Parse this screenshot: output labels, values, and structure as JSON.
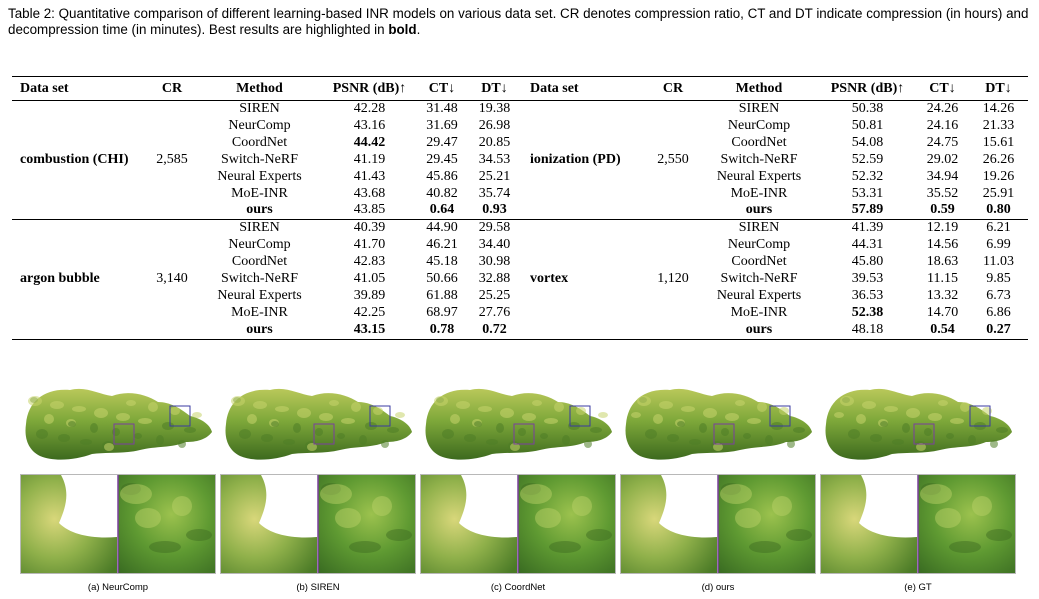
{
  "caption": {
    "prefix": "Table 2: Quantitative comparison of different learning-based INR models on various data set. CR denotes compression ratio, CT and DT indicate compression (in hours) and decompression time (in minutes). Best results are highlighted in ",
    "bold_word": "bold",
    "suffix": "."
  },
  "table": {
    "headers": [
      "Data set",
      "CR",
      "Method",
      "PSNR (dB)↑",
      "CT↓",
      "DT↓",
      "Data set",
      "CR",
      "Method",
      "PSNR (dB)↑",
      "CT↓",
      "DT↓"
    ],
    "groups": [
      {
        "left": {
          "dataset": "combustion (CHI)",
          "cr": "2,585"
        },
        "right": {
          "dataset": "ionization (PD)",
          "cr": "2,550"
        },
        "rows": [
          {
            "lm": "SIREN",
            "lp": "42.28",
            "lct": "31.48",
            "ldt": "19.38",
            "rm": "SIREN",
            "rp": "50.38",
            "rct": "24.26",
            "rdt": "14.26"
          },
          {
            "lm": "NeurComp",
            "lp": "43.16",
            "lct": "31.69",
            "ldt": "26.98",
            "rm": "NeurComp",
            "rp": "50.81",
            "rct": "24.16",
            "rdt": "21.33"
          },
          {
            "lm": "CoordNet",
            "lp": "44.42",
            "lct": "29.47",
            "ldt": "20.85",
            "rm": "CoordNet",
            "rp": "54.08",
            "rct": "24.75",
            "rdt": "15.61",
            "bold": [
              "lp"
            ]
          },
          {
            "lm": "Switch-NeRF",
            "lp": "41.19",
            "lct": "29.45",
            "ldt": "34.53",
            "rm": "Switch-NeRF",
            "rp": "52.59",
            "rct": "29.02",
            "rdt": "26.26"
          },
          {
            "lm": "Neural Experts",
            "lp": "41.43",
            "lct": "45.86",
            "ldt": "25.21",
            "rm": "Neural Experts",
            "rp": "52.32",
            "rct": "34.94",
            "rdt": "19.26"
          },
          {
            "lm": "MoE-INR",
            "lp": "43.68",
            "lct": "40.82",
            "ldt": "35.74",
            "rm": "MoE-INR",
            "rp": "53.31",
            "rct": "35.52",
            "rdt": "25.91"
          },
          {
            "lm": "ours",
            "lp": "43.85",
            "lct": "0.64",
            "ldt": "0.93",
            "rm": "ours",
            "rp": "57.89",
            "rct": "0.59",
            "rdt": "0.80",
            "bold": [
              "lm",
              "lct",
              "ldt",
              "rm",
              "rp",
              "rct",
              "rdt"
            ]
          }
        ]
      },
      {
        "left": {
          "dataset": "argon bubble",
          "cr": "3,140"
        },
        "right": {
          "dataset": "vortex",
          "cr": "1,120"
        },
        "rows": [
          {
            "lm": "SIREN",
            "lp": "40.39",
            "lct": "44.90",
            "ldt": "29.58",
            "rm": "SIREN",
            "rp": "41.39",
            "rct": "12.19",
            "rdt": "6.21"
          },
          {
            "lm": "NeurComp",
            "lp": "41.70",
            "lct": "46.21",
            "ldt": "34.40",
            "rm": "NeurComp",
            "rp": "44.31",
            "rct": "14.56",
            "rdt": "6.99"
          },
          {
            "lm": "CoordNet",
            "lp": "42.83",
            "lct": "45.18",
            "ldt": "30.98",
            "rm": "CoordNet",
            "rp": "45.80",
            "rct": "18.63",
            "rdt": "11.03"
          },
          {
            "lm": "Switch-NeRF",
            "lp": "41.05",
            "lct": "50.66",
            "ldt": "32.88",
            "rm": "Switch-NeRF",
            "rp": "39.53",
            "rct": "11.15",
            "rdt": "9.85"
          },
          {
            "lm": "Neural Experts",
            "lp": "39.89",
            "lct": "61.88",
            "ldt": "25.25",
            "rm": "Neural Experts",
            "rp": "36.53",
            "rct": "13.32",
            "rdt": "6.73"
          },
          {
            "lm": "MoE-INR",
            "lp": "42.25",
            "lct": "68.97",
            "ldt": "27.76",
            "rm": "MoE-INR",
            "rp": "52.38",
            "rct": "14.70",
            "rdt": "6.86",
            "bold": [
              "rp"
            ]
          },
          {
            "lm": "ours",
            "lp": "43.15",
            "lct": "0.78",
            "ldt": "0.72",
            "rm": "ours",
            "rp": "48.18",
            "rct": "0.54",
            "rdt": "0.27",
            "bold": [
              "lm",
              "lp",
              "lct",
              "ldt",
              "rm",
              "rct",
              "rdt"
            ]
          }
        ]
      }
    ]
  },
  "figure": {
    "panels": [
      {
        "label": "(a) NeurComp"
      },
      {
        "label": "(b) SIREN"
      },
      {
        "label": "(c) CoordNet"
      },
      {
        "label": "(d) ours"
      },
      {
        "label": "(e) GT"
      }
    ]
  }
}
